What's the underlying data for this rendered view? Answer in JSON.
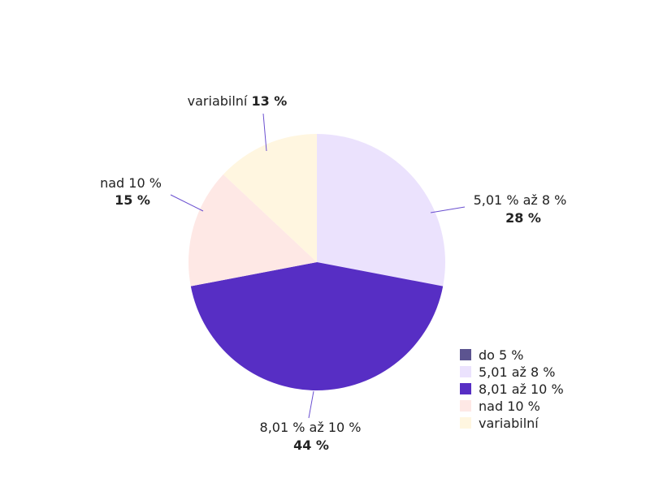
{
  "chart_data": {
    "type": "pie",
    "categories": [
      "do 5 %",
      "5,01 až 8 %",
      "8,01 až 10 %",
      "nad 10 %",
      "variabilní"
    ],
    "slice_labels": [
      null,
      "5,01 % až 8 %",
      "8,01 % až 10 %",
      "nad 10 %",
      "variabilní"
    ],
    "values": [
      0,
      28,
      44,
      15,
      13
    ],
    "value_labels": [
      null,
      "28 %",
      "44 %",
      "15 %",
      "13 %"
    ],
    "colors": [
      "#5c5490",
      "#ebe2fd",
      "#572ec4",
      "#fee8e5",
      "#fff6e0"
    ],
    "legend": "bottom-right"
  }
}
